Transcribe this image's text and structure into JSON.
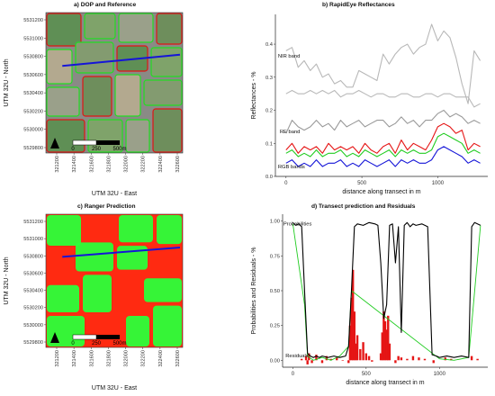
{
  "panels": {
    "a_title": "a) DOP and Reference",
    "b_title": "b) RapidEye Reflectances",
    "c_title": "c) Ranger Prediction",
    "d_title": "d) Transect prediction and Residuals"
  },
  "maps": {
    "ylabel": "UTM 32U - North",
    "xlabel": "UTM 32U - East",
    "y_ticks": [
      "5531200",
      "5531000",
      "5530800",
      "5530600",
      "5530400",
      "5530200",
      "5530000",
      "5529800"
    ],
    "x_ticks": [
      "321200",
      "321400",
      "321600",
      "321800",
      "322000",
      "322200",
      "322400",
      "322600"
    ],
    "scalebar": [
      "0",
      "250",
      "500m"
    ],
    "transect_color": "#1515d8",
    "field_outline_colors": [
      "#e01515",
      "#22dd22"
    ],
    "prediction_colors": [
      "#ff2a12",
      "#2bff3a"
    ]
  },
  "chart_data": [
    {
      "type": "line",
      "panel": "b",
      "xlabel": "distance along transect in m",
      "ylabel": "Reflectances - %",
      "x_ticks": [
        0,
        500,
        1000
      ],
      "y_ticks": [
        "0.0",
        "0.1",
        "0.2",
        "0.3",
        "0.4"
      ],
      "xlim": [
        -70,
        1330
      ],
      "ylim": [
        0,
        0.49
      ],
      "annotations": [
        "NIR band",
        "RE band",
        "RGB bands"
      ],
      "x": [
        0,
        40,
        80,
        120,
        160,
        200,
        240,
        280,
        320,
        360,
        400,
        440,
        480,
        520,
        560,
        600,
        640,
        680,
        720,
        760,
        800,
        840,
        880,
        920,
        960,
        1000,
        1040,
        1080,
        1120,
        1160,
        1200,
        1240,
        1280
      ],
      "series": [
        {
          "color": "#b8b8b8",
          "values": [
            0.38,
            0.39,
            0.33,
            0.35,
            0.32,
            0.34,
            0.3,
            0.31,
            0.28,
            0.29,
            0.27,
            0.27,
            0.32,
            0.31,
            0.3,
            0.29,
            0.37,
            0.34,
            0.37,
            0.39,
            0.4,
            0.37,
            0.39,
            0.4,
            0.46,
            0.41,
            0.44,
            0.42,
            0.36,
            0.28,
            0.22,
            0.38,
            0.35
          ]
        },
        {
          "color": "#b8b8b8",
          "values": [
            0.25,
            0.26,
            0.25,
            0.25,
            0.26,
            0.25,
            0.26,
            0.25,
            0.26,
            0.24,
            0.25,
            0.25,
            0.26,
            0.25,
            0.24,
            0.25,
            0.25,
            0.24,
            0.24,
            0.25,
            0.25,
            0.24,
            0.24,
            0.25,
            0.25,
            0.24,
            0.25,
            0.25,
            0.24,
            0.24,
            0.24,
            0.21,
            0.22
          ]
        },
        {
          "color": "#9a9a9a",
          "values": [
            0.13,
            0.17,
            0.15,
            0.14,
            0.15,
            0.17,
            0.15,
            0.16,
            0.14,
            0.17,
            0.15,
            0.16,
            0.17,
            0.15,
            0.16,
            0.17,
            0.17,
            0.15,
            0.16,
            0.18,
            0.16,
            0.17,
            0.15,
            0.17,
            0.17,
            0.19,
            0.2,
            0.18,
            0.19,
            0.18,
            0.16,
            0.17,
            0.16
          ]
        },
        {
          "color": "#e51515",
          "values": [
            0.08,
            0.1,
            0.07,
            0.09,
            0.08,
            0.09,
            0.07,
            0.1,
            0.08,
            0.09,
            0.08,
            0.09,
            0.07,
            0.1,
            0.08,
            0.07,
            0.09,
            0.1,
            0.07,
            0.11,
            0.08,
            0.1,
            0.09,
            0.08,
            0.11,
            0.15,
            0.16,
            0.15,
            0.13,
            0.14,
            0.08,
            0.1,
            0.09
          ]
        },
        {
          "color": "#22cc22",
          "values": [
            0.07,
            0.08,
            0.06,
            0.07,
            0.06,
            0.08,
            0.06,
            0.07,
            0.07,
            0.08,
            0.06,
            0.07,
            0.06,
            0.08,
            0.07,
            0.06,
            0.07,
            0.08,
            0.06,
            0.08,
            0.07,
            0.08,
            0.07,
            0.07,
            0.08,
            0.12,
            0.13,
            0.12,
            0.11,
            0.1,
            0.07,
            0.08,
            0.07
          ]
        },
        {
          "color": "#1515d8",
          "values": [
            0.04,
            0.05,
            0.03,
            0.04,
            0.03,
            0.05,
            0.03,
            0.04,
            0.04,
            0.05,
            0.03,
            0.04,
            0.03,
            0.05,
            0.04,
            0.03,
            0.04,
            0.05,
            0.03,
            0.05,
            0.04,
            0.05,
            0.04,
            0.04,
            0.05,
            0.08,
            0.09,
            0.08,
            0.07,
            0.06,
            0.04,
            0.05,
            0.04
          ]
        }
      ]
    },
    {
      "type": "line",
      "panel": "d",
      "xlabel": "distance along transect in m",
      "ylabel": "Probabilities and Residuals - %",
      "x_ticks": [
        0,
        500,
        1000
      ],
      "y_ticks": [
        "0.00",
        "0.25",
        "0.50",
        "0.75",
        "1.00"
      ],
      "xlim": [
        -70,
        1330
      ],
      "ylim": [
        -0.05,
        1.05
      ],
      "annotations": [
        "Probabilities",
        "Residuals"
      ],
      "probabilities": {
        "color": "#000000",
        "x": [
          0,
          20,
          40,
          60,
          80,
          100,
          120,
          140,
          160,
          180,
          200,
          240,
          280,
          320,
          360,
          380,
          400,
          420,
          440,
          480,
          520,
          560,
          580,
          600,
          620,
          640,
          660,
          680,
          700,
          720,
          740,
          760,
          780,
          800,
          820,
          840,
          880,
          920,
          950,
          980,
          1000,
          1050,
          1100,
          1150,
          1200,
          1220,
          1240,
          1280
        ],
        "values": [
          0.99,
          0.97,
          0.98,
          0.96,
          0.5,
          0.05,
          0.03,
          0.02,
          0.03,
          0.02,
          0.03,
          0.02,
          0.03,
          0.02,
          0.03,
          0.1,
          0.5,
          0.96,
          0.98,
          0.97,
          0.99,
          0.98,
          0.97,
          0.7,
          0.3,
          0.4,
          0.97,
          0.98,
          0.7,
          0.96,
          0.2,
          0.97,
          0.99,
          0.96,
          0.98,
          0.97,
          0.98,
          0.96,
          0.04,
          0.03,
          0.02,
          0.03,
          0.02,
          0.03,
          0.02,
          0.96,
          0.99,
          0.97
        ]
      },
      "predicted": {
        "color": "#22cc22",
        "x": [
          0,
          80,
          100,
          140,
          200,
          260,
          320,
          380,
          400,
          1000,
          1100,
          1200,
          1280
        ],
        "values": [
          0.98,
          0.4,
          0.03,
          0.0,
          0.02,
          0.0,
          0.03,
          0.1,
          0.5,
          0.01,
          0.0,
          0.02,
          0.97
        ]
      },
      "residuals": {
        "color": "#e51515",
        "x": [
          60,
          90,
          100,
          110,
          130,
          160,
          200,
          230,
          260,
          300,
          340,
          380,
          390,
          400,
          410,
          420,
          430,
          440,
          460,
          480,
          500,
          520,
          540,
          600,
          610,
          620,
          630,
          640,
          650,
          660,
          700,
          720,
          740,
          780,
          820,
          860,
          900,
          960,
          1040,
          1080,
          1220,
          1260
        ],
        "values": [
          0.01,
          0.03,
          -0.03,
          0.05,
          -0.02,
          0.04,
          -0.02,
          0.03,
          0.01,
          0.02,
          0.0,
          -0.02,
          0.25,
          0.45,
          0.65,
          0.35,
          0.12,
          0.18,
          0.08,
          0.13,
          0.05,
          0.03,
          -0.01,
          0.05,
          0.2,
          0.35,
          0.28,
          0.22,
          0.32,
          0.12,
          -0.02,
          0.03,
          0.02,
          0.01,
          0.03,
          0.02,
          0.01,
          -0.02,
          0.02,
          0.01,
          0.03,
          0.01
        ]
      }
    }
  ]
}
